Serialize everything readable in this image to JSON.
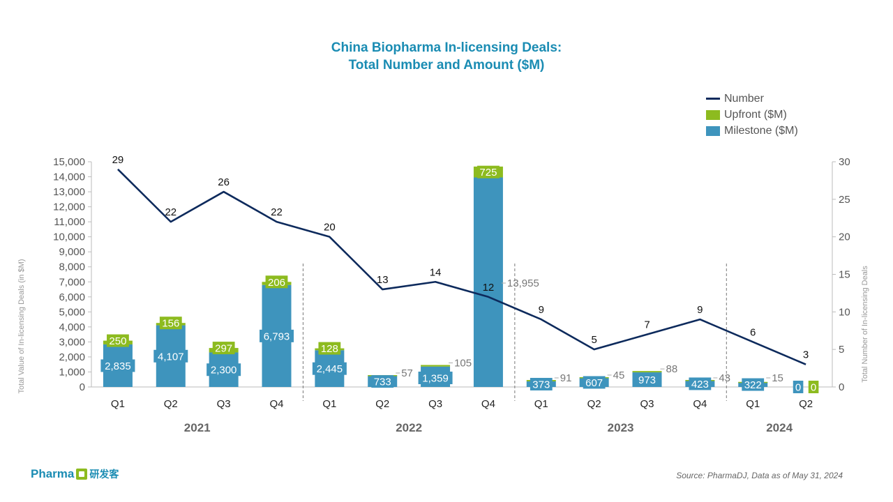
{
  "title_line1": "China Biopharma In-licensing Deals:",
  "title_line2": "Total Number and Amount ($M)",
  "legend": [
    {
      "label": "Number",
      "icon": "line",
      "color": "#0d2a5c"
    },
    {
      "label": "Upfront ($M)",
      "icon": "box",
      "color": "#8dbb1f"
    },
    {
      "label": "Milestone ($M)",
      "icon": "box",
      "color": "#3e94bd"
    }
  ],
  "source": "Source: PharmaDJ, Data as of May 31, 2024",
  "logo": {
    "text": "Pharma",
    "cn": "研发客"
  },
  "chart_data": {
    "type": "bar",
    "stacked": true,
    "categories": [
      "Q1",
      "Q2",
      "Q3",
      "Q4",
      "Q1",
      "Q2",
      "Q3",
      "Q4",
      "Q1",
      "Q2",
      "Q3",
      "Q4",
      "Q1",
      "Q2"
    ],
    "years": [
      {
        "label": "2021",
        "quarters": 4
      },
      {
        "label": "2022",
        "quarters": 4
      },
      {
        "label": "2023",
        "quarters": 4
      },
      {
        "label": "2024",
        "quarters": 2
      }
    ],
    "series": [
      {
        "name": "Milestone ($M)",
        "color": "#3e94bd",
        "axis": "left",
        "values": [
          2835,
          4107,
          2300,
          6793,
          2445,
          733,
          1359,
          13955,
          373,
          607,
          973,
          423,
          322,
          0
        ]
      },
      {
        "name": "Upfront ($M)",
        "color": "#8dbb1f",
        "axis": "left",
        "values": [
          250,
          156,
          297,
          206,
          128,
          57,
          105,
          725,
          91,
          45,
          88,
          43,
          15,
          0
        ]
      },
      {
        "name": "Number",
        "color": "#0d2a5c",
        "axis": "right",
        "type": "line",
        "values": [
          29,
          22,
          26,
          22,
          20,
          13,
          14,
          12,
          9,
          5,
          7,
          9,
          6,
          3
        ]
      }
    ],
    "ylabel": "Total Value of In-licensing Deals (in $M)",
    "y2label": "Total Number of In-licensing Deals",
    "ylim": [
      0,
      15000
    ],
    "yticks": [
      0,
      1000,
      2000,
      3000,
      4000,
      5000,
      6000,
      7000,
      8000,
      9000,
      10000,
      11000,
      12000,
      13000,
      14000,
      15000
    ],
    "y2lim": [
      0,
      30
    ],
    "y2ticks": [
      0,
      5,
      10,
      15,
      20,
      25,
      30
    ],
    "grid": false,
    "legend_position": "top-right"
  }
}
